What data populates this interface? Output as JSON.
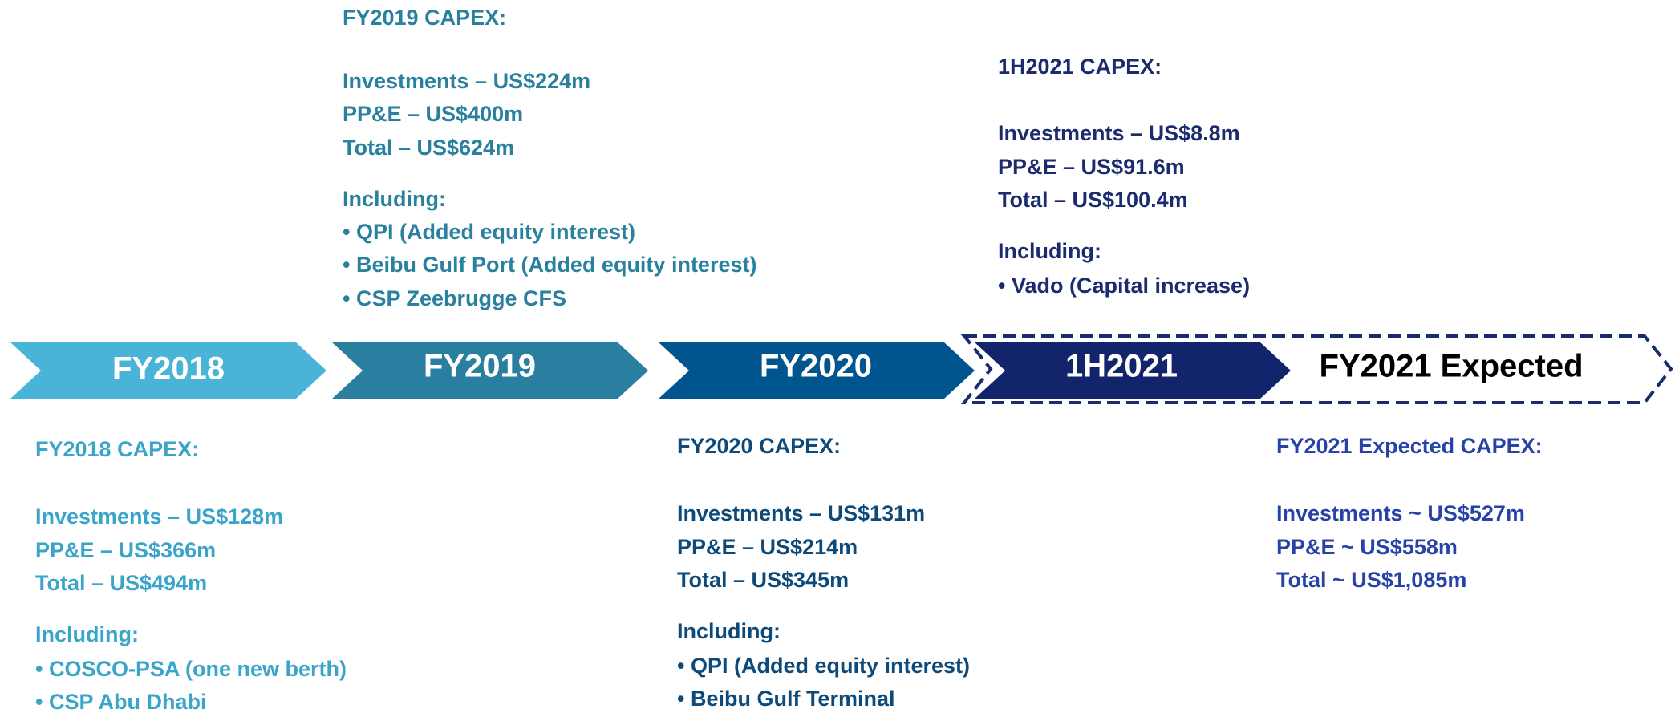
{
  "stages": [
    {
      "label": "FY2018"
    },
    {
      "label": "FY2019"
    },
    {
      "label": "FY2020"
    },
    {
      "label": "1H2021"
    },
    {
      "label": "FY2021 Expected"
    }
  ],
  "blocks": [
    {
      "title": "FY2018 CAPEX:",
      "lines": [
        "Investments – US$128m",
        "PP&E – US$366m",
        "Total – US$494m"
      ],
      "including": "Including:",
      "items": [
        "• COSCO-PSA (one new berth)",
        "• CSP Abu Dhabi"
      ]
    },
    {
      "title": "FY2019 CAPEX:",
      "lines": [
        "Investments – US$224m",
        "PP&E – US$400m",
        "Total – US$624m"
      ],
      "including": "Including:",
      "items": [
        "• QPI (Added equity interest)",
        "• Beibu Gulf Port (Added equity interest)",
        "• CSP Zeebrugge CFS"
      ]
    },
    {
      "title": "FY2020 CAPEX:",
      "lines": [
        "Investments – US$131m",
        "PP&E – US$214m",
        "Total – US$345m"
      ],
      "including": "Including:",
      "items": [
        "• QPI (Added equity interest)",
        "• Beibu Gulf Terminal"
      ]
    },
    {
      "title": "1H2021 CAPEX:",
      "lines": [
        "Investments – US$8.8m",
        "PP&E – US$91.6m",
        "Total – US$100.4m"
      ],
      "including": "Including:",
      "items": [
        "• Vado (Capital increase)"
      ]
    },
    {
      "title": "FY2021 Expected CAPEX:",
      "lines": [
        "Investments ~ US$527m",
        "PP&E ~ US$558m",
        "Total ~ US$1,085m"
      ]
    }
  ]
}
